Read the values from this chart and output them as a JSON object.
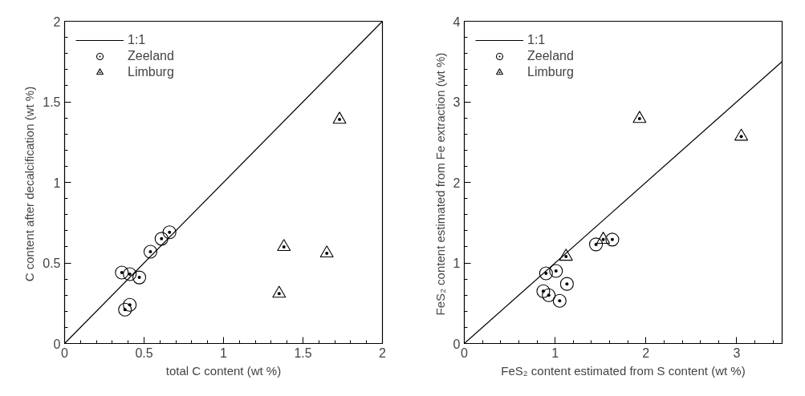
{
  "chart_data": [
    {
      "type": "scatter",
      "xlabel": "total C content (wt %)",
      "ylabel": "C content after decalcification  (wt %)",
      "xlim": [
        0,
        2
      ],
      "ylim": [
        0,
        2
      ],
      "xticks": [
        0,
        {
          "value": 0.1,
          "label": null
        },
        {
          "value": 0.2,
          "label": null
        },
        {
          "value": 0.3,
          "label": null
        },
        {
          "value": 0.4,
          "label": null
        },
        0.5,
        {
          "value": 0.6,
          "label": null
        },
        {
          "value": 0.7,
          "label": null
        },
        {
          "value": 0.8,
          "label": null
        },
        {
          "value": 0.9,
          "label": null
        },
        1,
        {
          "value": 1.1,
          "label": null
        },
        {
          "value": 1.2,
          "label": null
        },
        {
          "value": 1.3,
          "label": null
        },
        {
          "value": 1.4,
          "label": null
        },
        1.5,
        {
          "value": 1.6,
          "label": null
        },
        {
          "value": 1.7,
          "label": null
        },
        {
          "value": 1.8,
          "label": null
        },
        {
          "value": 1.9,
          "label": null
        },
        2
      ],
      "yticks": [
        0,
        {
          "value": 0.1,
          "label": null
        },
        {
          "value": 0.2,
          "label": null
        },
        {
          "value": 0.3,
          "label": null
        },
        {
          "value": 0.4,
          "label": null
        },
        0.5,
        {
          "value": 0.6,
          "label": null
        },
        {
          "value": 0.7,
          "label": null
        },
        {
          "value": 0.8,
          "label": null
        },
        {
          "value": 0.9,
          "label": null
        },
        1,
        {
          "value": 1.1,
          "label": null
        },
        {
          "value": 1.2,
          "label": null
        },
        {
          "value": 1.3,
          "label": null
        },
        {
          "value": 1.4,
          "label": null
        },
        1.5,
        {
          "value": 1.6,
          "label": null
        },
        {
          "value": 1.7,
          "label": null
        },
        {
          "value": 1.8,
          "label": null
        },
        {
          "value": 1.9,
          "label": null
        },
        2
      ],
      "legend": "top left",
      "grid": false,
      "series": [
        {
          "name": "1:1",
          "type": "line",
          "color": "#000000",
          "line_style": "solid",
          "x": [
            0,
            2
          ],
          "values": [
            0,
            2
          ]
        },
        {
          "name": "Zeeland",
          "marker": "circle",
          "color": "#000000",
          "x": [
            0.36,
            0.41,
            0.47,
            0.54,
            0.61,
            0.66,
            0.41,
            0.38
          ],
          "values": [
            0.44,
            0.43,
            0.41,
            0.57,
            0.65,
            0.69,
            0.24,
            0.21
          ]
        },
        {
          "name": "Limburg",
          "marker": "triangle",
          "color": "#000000",
          "x": [
            1.38,
            1.65,
            1.35,
            1.73
          ],
          "values": [
            0.6,
            0.56,
            0.31,
            1.39
          ]
        }
      ]
    },
    {
      "type": "scatter",
      "xlabel": "FeS₂ content estimated from S content (wt %)",
      "ylabel": "FeS₂ content estimated from Fe extraction  (wt %)",
      "xlim": [
        0,
        3.5
      ],
      "ylim": [
        0,
        4
      ],
      "xticks": [
        0,
        {
          "value": 0.2,
          "label": null
        },
        {
          "value": 0.4,
          "label": null
        },
        {
          "value": 0.6,
          "label": null
        },
        {
          "value": 0.8,
          "label": null
        },
        1,
        {
          "value": 1.2,
          "label": null
        },
        {
          "value": 1.4,
          "label": null
        },
        {
          "value": 1.6,
          "label": null
        },
        {
          "value": 1.8,
          "label": null
        },
        2,
        {
          "value": 2.2,
          "label": null
        },
        {
          "value": 2.4,
          "label": null
        },
        {
          "value": 2.6,
          "label": null
        },
        {
          "value": 2.8,
          "label": null
        },
        3,
        {
          "value": 3.2,
          "label": null
        },
        {
          "value": 3.4,
          "label": null
        }
      ],
      "yticks": [
        0,
        {
          "value": 0.2,
          "label": null
        },
        {
          "value": 0.4,
          "label": null
        },
        {
          "value": 0.6,
          "label": null
        },
        {
          "value": 0.8,
          "label": null
        },
        1,
        {
          "value": 1.2,
          "label": null
        },
        {
          "value": 1.4,
          "label": null
        },
        {
          "value": 1.6,
          "label": null
        },
        {
          "value": 1.8,
          "label": null
        },
        2,
        {
          "value": 2.2,
          "label": null
        },
        {
          "value": 2.4,
          "label": null
        },
        {
          "value": 2.6,
          "label": null
        },
        {
          "value": 2.8,
          "label": null
        },
        3,
        {
          "value": 3.2,
          "label": null
        },
        {
          "value": 3.4,
          "label": null
        },
        {
          "value": 3.6,
          "label": null
        },
        {
          "value": 3.8,
          "label": null
        },
        4
      ],
      "legend": "top left",
      "grid": false,
      "series": [
        {
          "name": "1:1",
          "type": "line",
          "color": "#000000",
          "line_style": "solid",
          "x": [
            0,
            3.5
          ],
          "values": [
            0,
            3.5
          ]
        },
        {
          "name": "Zeeland",
          "marker": "circle",
          "color": "#000000",
          "x": [
            0.9,
            1.01,
            1.13,
            0.87,
            0.93,
            1.05,
            1.45,
            1.63
          ],
          "values": [
            0.87,
            0.9,
            0.74,
            0.65,
            0.6,
            0.53,
            1.23,
            1.29
          ]
        },
        {
          "name": "Limburg",
          "marker": "triangle",
          "color": "#000000",
          "x": [
            1.12,
            1.53,
            1.93,
            3.05
          ],
          "values": [
            1.08,
            1.29,
            2.79,
            2.57
          ]
        }
      ]
    }
  ]
}
